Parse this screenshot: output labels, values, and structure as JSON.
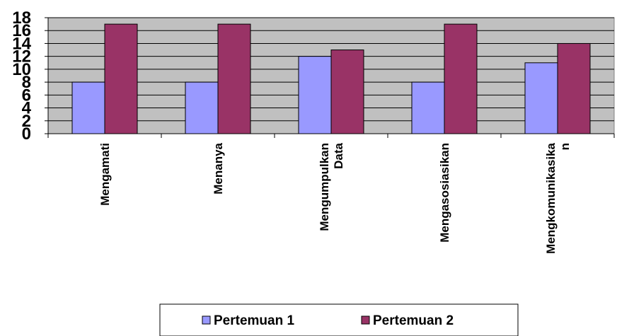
{
  "chart_data": {
    "type": "bar",
    "categories": [
      [
        "Mengamati"
      ],
      [
        "Menanya"
      ],
      [
        "Mengumpulkan",
        "Data"
      ],
      [
        "Mengasosiasikan"
      ],
      [
        "Mengkomunikasika",
        "n"
      ]
    ],
    "series": [
      {
        "name": "Pertemuan 1",
        "values": [
          8,
          8,
          12,
          8,
          11
        ],
        "color": "#9999ff"
      },
      {
        "name": "Pertemuan 2",
        "values": [
          17,
          17,
          13,
          17,
          14
        ],
        "color": "#993366"
      }
    ],
    "ylim": [
      0,
      18
    ],
    "yticks": [
      0,
      2,
      4,
      6,
      8,
      10,
      12,
      14,
      16,
      18
    ],
    "plot_background": "#c0c0c0",
    "grid": true,
    "legend_position": "bottom"
  }
}
